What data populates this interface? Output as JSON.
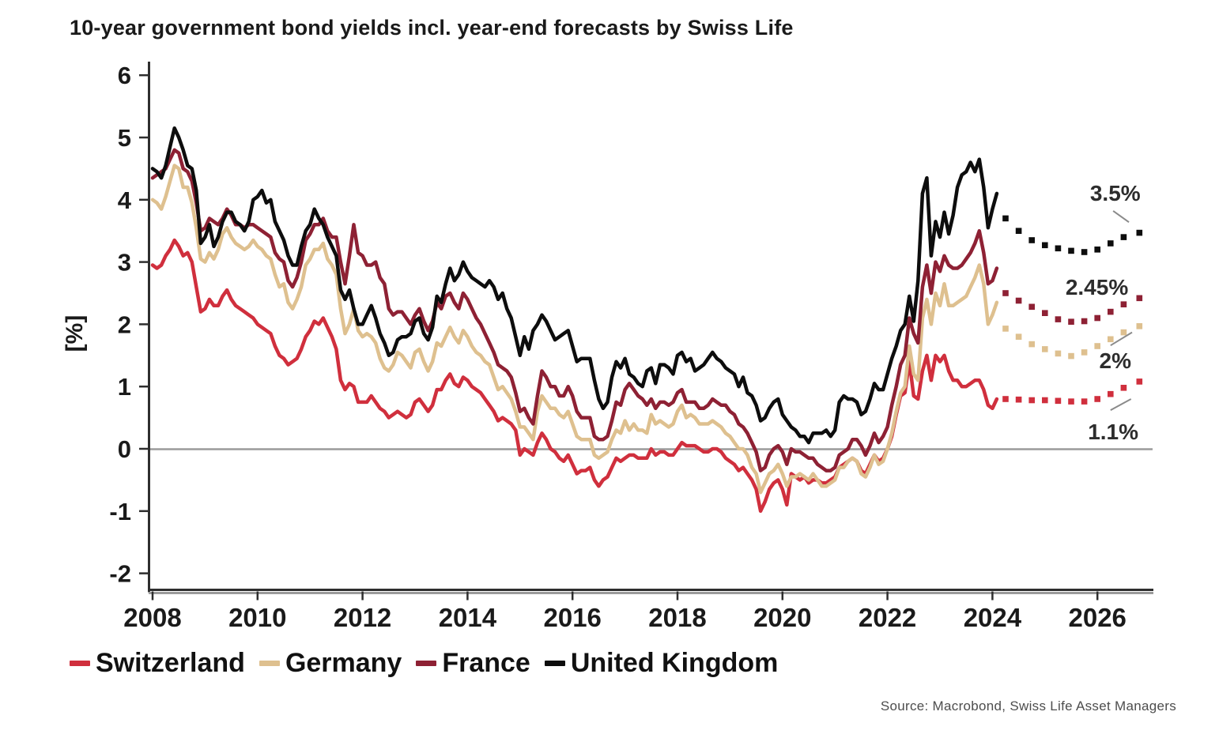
{
  "title": "10-year government bond yields incl. year-end forecasts by Swiss Life",
  "source": "Source: Macrobond, Swiss Life Asset Managers",
  "style": {
    "axis_color": "#2e2e2e",
    "axis_shadow_color": "#9b9b9b",
    "zero_line_color": "#9b9b9b",
    "tick_label_color": "#1a1a1a",
    "annotation_color": "#2d2d2d",
    "callout_color": "#8a8a8a",
    "source_color": "#4d4d4d"
  },
  "chart_data": {
    "type": "line",
    "title": "10-year government bond yields incl. year-end forecasts by Swiss Life",
    "xlabel": "",
    "ylabel": "[%]",
    "legend_position": "bottom",
    "grid": false,
    "zero_line": true,
    "x_axis": {
      "ticks": [
        2008,
        2010,
        2012,
        2014,
        2016,
        2018,
        2020,
        2022,
        2024,
        2026
      ],
      "range": [
        2007.6,
        2027.05
      ]
    },
    "y_axis": {
      "ticks": [
        6,
        5,
        4,
        3,
        2,
        1,
        0,
        -1,
        -2
      ],
      "range": [
        -2.3,
        6.2
      ],
      "unit": "%"
    },
    "history_start": 2008.0,
    "history_step_years": 0.083333,
    "series": [
      {
        "name": "Switzerland",
        "color": "#d02f3d",
        "history_monthly": [
          2.95,
          2.9,
          2.95,
          3.1,
          3.2,
          3.35,
          3.25,
          3.1,
          3.15,
          3.0,
          2.6,
          2.2,
          2.25,
          2.4,
          2.3,
          2.3,
          2.45,
          2.55,
          2.4,
          2.3,
          2.25,
          2.2,
          2.15,
          2.1,
          2.0,
          1.95,
          1.9,
          1.85,
          1.65,
          1.5,
          1.45,
          1.35,
          1.4,
          1.45,
          1.6,
          1.8,
          1.9,
          2.05,
          2.0,
          2.1,
          1.95,
          1.8,
          1.6,
          1.1,
          0.95,
          1.05,
          1.0,
          0.75,
          0.75,
          0.75,
          0.85,
          0.75,
          0.65,
          0.6,
          0.5,
          0.55,
          0.6,
          0.55,
          0.5,
          0.55,
          0.75,
          0.8,
          0.7,
          0.6,
          0.7,
          0.95,
          0.95,
          1.1,
          1.2,
          1.05,
          1.0,
          1.15,
          1.1,
          1.0,
          0.95,
          0.9,
          0.8,
          0.7,
          0.6,
          0.45,
          0.5,
          0.45,
          0.4,
          0.3,
          -0.1,
          0.0,
          -0.05,
          -0.1,
          0.1,
          0.25,
          0.15,
          0.0,
          -0.05,
          -0.15,
          -0.2,
          -0.1,
          -0.25,
          -0.4,
          -0.35,
          -0.35,
          -0.3,
          -0.5,
          -0.6,
          -0.5,
          -0.45,
          -0.3,
          -0.15,
          -0.2,
          -0.15,
          -0.1,
          -0.1,
          -0.15,
          -0.15,
          -0.15,
          0.0,
          -0.1,
          -0.05,
          -0.05,
          -0.1,
          -0.1,
          0.0,
          0.1,
          0.05,
          0.05,
          0.05,
          0.0,
          -0.05,
          -0.05,
          0.0,
          0.0,
          -0.05,
          -0.15,
          -0.2,
          -0.25,
          -0.35,
          -0.3,
          -0.4,
          -0.5,
          -0.65,
          -1.0,
          -0.85,
          -0.65,
          -0.55,
          -0.5,
          -0.65,
          -0.9,
          -0.4,
          -0.45,
          -0.5,
          -0.45,
          -0.55,
          -0.5,
          -0.5,
          -0.55,
          -0.55,
          -0.5,
          -0.45,
          -0.3,
          -0.25,
          -0.2,
          -0.15,
          -0.2,
          -0.35,
          -0.4,
          -0.25,
          -0.1,
          -0.2,
          -0.15,
          0.0,
          0.2,
          0.55,
          0.85,
          0.9,
          1.4,
          0.85,
          0.8,
          1.25,
          1.5,
          1.1,
          1.5,
          1.4,
          1.5,
          1.25,
          1.1,
          1.1,
          1.0,
          1.0,
          1.05,
          1.1,
          1.1,
          0.95,
          0.7,
          0.65,
          0.8
        ],
        "forecast": [
          [
            2024.25,
            0.8
          ],
          [
            2024.5,
            0.79
          ],
          [
            2024.75,
            0.78
          ],
          [
            2025.0,
            0.78
          ],
          [
            2025.25,
            0.77
          ],
          [
            2025.5,
            0.76
          ],
          [
            2025.75,
            0.76
          ],
          [
            2026.0,
            0.8
          ],
          [
            2026.25,
            0.88
          ],
          [
            2026.5,
            0.98
          ],
          [
            2026.8,
            1.08
          ]
        ]
      },
      {
        "name": "Germany",
        "color": "#dec08f",
        "history_monthly": [
          4.0,
          3.95,
          3.85,
          4.05,
          4.3,
          4.55,
          4.5,
          4.2,
          4.2,
          3.95,
          3.55,
          3.05,
          3.0,
          3.15,
          3.05,
          3.2,
          3.45,
          3.55,
          3.4,
          3.3,
          3.25,
          3.2,
          3.25,
          3.35,
          3.25,
          3.2,
          3.1,
          3.05,
          2.8,
          2.6,
          2.65,
          2.35,
          2.25,
          2.4,
          2.6,
          2.95,
          3.05,
          3.2,
          3.2,
          3.3,
          3.05,
          2.95,
          2.8,
          2.25,
          1.85,
          2.0,
          2.25,
          1.9,
          1.8,
          1.85,
          1.8,
          1.7,
          1.45,
          1.3,
          1.25,
          1.35,
          1.55,
          1.5,
          1.4,
          1.3,
          1.55,
          1.6,
          1.4,
          1.25,
          1.4,
          1.7,
          1.65,
          1.8,
          1.95,
          1.8,
          1.7,
          1.9,
          1.8,
          1.65,
          1.55,
          1.5,
          1.4,
          1.35,
          1.15,
          0.95,
          1.0,
          0.9,
          0.8,
          0.6,
          0.35,
          0.35,
          0.25,
          0.15,
          0.6,
          0.85,
          0.75,
          0.65,
          0.65,
          0.55,
          0.5,
          0.6,
          0.4,
          0.2,
          0.15,
          0.15,
          0.15,
          -0.1,
          -0.15,
          -0.1,
          -0.05,
          0.15,
          0.3,
          0.25,
          0.45,
          0.3,
          0.4,
          0.3,
          0.3,
          0.25,
          0.55,
          0.4,
          0.45,
          0.4,
          0.35,
          0.4,
          0.6,
          0.7,
          0.5,
          0.55,
          0.5,
          0.4,
          0.4,
          0.4,
          0.45,
          0.4,
          0.35,
          0.25,
          0.2,
          0.1,
          0.0,
          0.0,
          -0.1,
          -0.3,
          -0.4,
          -0.7,
          -0.55,
          -0.4,
          -0.35,
          -0.25,
          -0.4,
          -0.6,
          -0.45,
          -0.45,
          -0.4,
          -0.45,
          -0.5,
          -0.4,
          -0.5,
          -0.6,
          -0.6,
          -0.55,
          -0.5,
          -0.3,
          -0.3,
          -0.2,
          -0.15,
          -0.2,
          -0.4,
          -0.45,
          -0.3,
          -0.1,
          -0.25,
          -0.2,
          0.0,
          0.25,
          0.6,
          0.9,
          1.0,
          1.65,
          1.2,
          1.1,
          2.1,
          2.4,
          2.0,
          2.5,
          2.3,
          2.65,
          2.3,
          2.3,
          2.35,
          2.4,
          2.45,
          2.6,
          2.75,
          2.95,
          2.65,
          2.0,
          2.15,
          2.35
        ],
        "forecast": [
          [
            2024.25,
            1.93
          ],
          [
            2024.5,
            1.8
          ],
          [
            2024.75,
            1.68
          ],
          [
            2025.0,
            1.6
          ],
          [
            2025.25,
            1.53
          ],
          [
            2025.5,
            1.49
          ],
          [
            2025.75,
            1.55
          ],
          [
            2026.0,
            1.65
          ],
          [
            2026.25,
            1.76
          ],
          [
            2026.5,
            1.87
          ],
          [
            2026.8,
            1.97
          ]
        ]
      },
      {
        "name": "France",
        "color": "#8e2134",
        "history_monthly": [
          4.35,
          4.4,
          4.45,
          4.5,
          4.65,
          4.8,
          4.75,
          4.5,
          4.45,
          4.3,
          3.95,
          3.5,
          3.55,
          3.7,
          3.65,
          3.6,
          3.7,
          3.85,
          3.75,
          3.6,
          3.6,
          3.55,
          3.6,
          3.6,
          3.55,
          3.5,
          3.45,
          3.4,
          3.15,
          3.05,
          3.0,
          2.7,
          2.6,
          2.75,
          3.0,
          3.35,
          3.45,
          3.6,
          3.6,
          3.7,
          3.5,
          3.4,
          3.4,
          3.0,
          2.65,
          3.1,
          3.6,
          3.15,
          3.1,
          2.95,
          2.95,
          3.0,
          2.75,
          2.65,
          2.25,
          2.15,
          2.2,
          2.2,
          2.1,
          2.0,
          2.15,
          2.25,
          2.05,
          1.9,
          2.05,
          2.35,
          2.25,
          2.45,
          2.5,
          2.35,
          2.25,
          2.5,
          2.4,
          2.25,
          2.1,
          2.0,
          1.85,
          1.7,
          1.55,
          1.35,
          1.3,
          1.25,
          1.15,
          0.9,
          0.6,
          0.65,
          0.5,
          0.4,
          0.85,
          1.25,
          1.15,
          1.0,
          1.0,
          0.85,
          0.85,
          1.0,
          0.85,
          0.6,
          0.5,
          0.5,
          0.5,
          0.2,
          0.15,
          0.15,
          0.2,
          0.45,
          0.75,
          0.7,
          0.95,
          1.05,
          0.95,
          0.85,
          0.8,
          0.7,
          0.8,
          0.65,
          0.75,
          0.75,
          0.7,
          0.75,
          0.9,
          0.95,
          0.75,
          0.75,
          0.75,
          0.65,
          0.65,
          0.7,
          0.8,
          0.75,
          0.7,
          0.7,
          0.6,
          0.55,
          0.4,
          0.35,
          0.25,
          0.1,
          -0.05,
          -0.35,
          -0.3,
          -0.1,
          0.0,
          0.05,
          -0.05,
          -0.25,
          0.0,
          -0.05,
          -0.05,
          -0.1,
          -0.15,
          -0.15,
          -0.25,
          -0.3,
          -0.35,
          -0.35,
          -0.3,
          -0.1,
          -0.05,
          0.0,
          0.15,
          0.15,
          0.05,
          -0.1,
          0.05,
          0.25,
          0.1,
          0.2,
          0.35,
          0.7,
          1.0,
          1.35,
          1.5,
          2.1,
          1.85,
          1.7,
          2.6,
          2.95,
          2.5,
          3.0,
          2.85,
          3.1,
          2.95,
          2.9,
          2.9,
          2.95,
          3.05,
          3.15,
          3.3,
          3.5,
          3.15,
          2.65,
          2.7,
          2.9
        ],
        "forecast": [
          [
            2024.25,
            2.5
          ],
          [
            2024.5,
            2.38
          ],
          [
            2024.75,
            2.28
          ],
          [
            2025.0,
            2.18
          ],
          [
            2025.25,
            2.08
          ],
          [
            2025.5,
            2.04
          ],
          [
            2025.75,
            2.05
          ],
          [
            2026.0,
            2.1
          ],
          [
            2026.25,
            2.2
          ],
          [
            2026.5,
            2.32
          ],
          [
            2026.8,
            2.42
          ]
        ]
      },
      {
        "name": "United Kingdom",
        "color": "#0d0d0d",
        "history_monthly": [
          4.5,
          4.45,
          4.35,
          4.55,
          4.85,
          5.15,
          5.0,
          4.8,
          4.55,
          4.5,
          4.15,
          3.3,
          3.4,
          3.6,
          3.25,
          3.4,
          3.65,
          3.8,
          3.8,
          3.65,
          3.6,
          3.5,
          3.65,
          4.0,
          4.05,
          4.15,
          3.95,
          4.0,
          3.65,
          3.5,
          3.35,
          3.1,
          2.95,
          2.95,
          3.25,
          3.5,
          3.6,
          3.85,
          3.7,
          3.6,
          3.4,
          3.25,
          3.1,
          2.55,
          2.4,
          2.55,
          2.25,
          2.0,
          2.0,
          2.15,
          2.3,
          2.1,
          1.85,
          1.7,
          1.5,
          1.55,
          1.75,
          1.8,
          1.8,
          1.85,
          2.05,
          2.1,
          1.85,
          1.75,
          1.95,
          2.45,
          2.35,
          2.65,
          2.9,
          2.7,
          2.8,
          3.0,
          2.85,
          2.75,
          2.7,
          2.65,
          2.6,
          2.7,
          2.6,
          2.4,
          2.5,
          2.25,
          2.1,
          1.8,
          1.5,
          1.8,
          1.6,
          1.9,
          2.0,
          2.15,
          2.05,
          1.9,
          1.75,
          1.8,
          1.85,
          1.9,
          1.65,
          1.4,
          1.45,
          1.45,
          1.45,
          1.1,
          0.8,
          0.65,
          0.75,
          1.15,
          1.4,
          1.3,
          1.45,
          1.2,
          1.15,
          1.05,
          1.0,
          1.25,
          1.3,
          1.05,
          1.35,
          1.35,
          1.3,
          1.2,
          1.5,
          1.55,
          1.4,
          1.45,
          1.25,
          1.3,
          1.35,
          1.45,
          1.55,
          1.45,
          1.4,
          1.3,
          1.25,
          1.2,
          1.0,
          1.15,
          0.9,
          0.85,
          0.7,
          0.45,
          0.5,
          0.65,
          0.75,
          0.8,
          0.55,
          0.45,
          0.35,
          0.3,
          0.2,
          0.2,
          0.1,
          0.25,
          0.25,
          0.25,
          0.3,
          0.2,
          0.3,
          0.75,
          0.85,
          0.8,
          0.8,
          0.75,
          0.55,
          0.6,
          0.8,
          1.05,
          0.95,
          0.95,
          1.2,
          1.45,
          1.65,
          1.9,
          2.0,
          2.45,
          2.05,
          2.7,
          4.1,
          4.35,
          3.1,
          3.65,
          3.4,
          3.8,
          3.45,
          3.75,
          4.2,
          4.4,
          4.45,
          4.6,
          4.45,
          4.65,
          4.2,
          3.55,
          3.85,
          4.1
        ],
        "forecast": [
          [
            2024.25,
            3.7
          ],
          [
            2024.5,
            3.5
          ],
          [
            2024.75,
            3.35
          ],
          [
            2025.0,
            3.27
          ],
          [
            2025.25,
            3.22
          ],
          [
            2025.5,
            3.18
          ],
          [
            2025.75,
            3.16
          ],
          [
            2026.0,
            3.2
          ],
          [
            2026.25,
            3.3
          ],
          [
            2026.5,
            3.4
          ],
          [
            2026.8,
            3.47
          ]
        ]
      }
    ],
    "annotations": [
      {
        "text": "3.5%",
        "x": 2026.34,
        "y": 4.11,
        "line": [
          2026.3,
          3.82,
          2026.6,
          3.64
        ]
      },
      {
        "text": "2.45%",
        "x": 2025.99,
        "y": 2.6,
        "line": null
      },
      {
        "text": "2%",
        "x": 2026.34,
        "y": 1.42,
        "line": [
          2026.25,
          1.66,
          2026.66,
          1.87
        ]
      },
      {
        "text": "1.1%",
        "x": 2026.3,
        "y": 0.28,
        "line": [
          2026.25,
          0.62,
          2026.64,
          0.8
        ]
      }
    ]
  }
}
